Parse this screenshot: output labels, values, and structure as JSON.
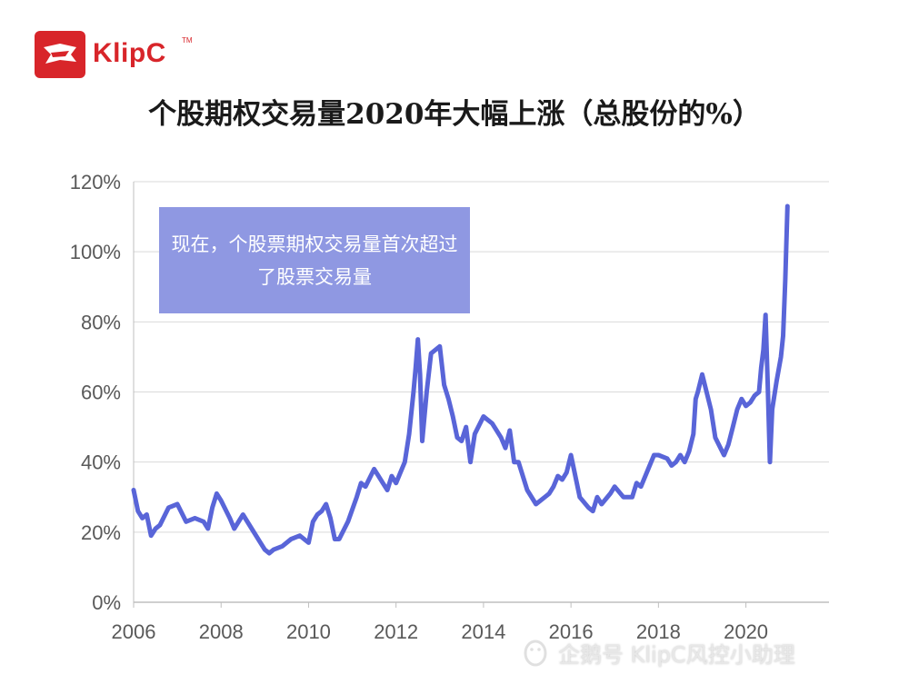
{
  "brand": {
    "name": "KlipC",
    "tm": "TM"
  },
  "title": "个股期权交易量2020年大幅上涨（总股份的%）",
  "annotation": "现在，个股票期权交易量首次超过了股票交易量",
  "watermark": "企鹅号 KlipC风控小助理",
  "colors": {
    "line": "#5965d8",
    "annotation_bg": "#8f98e2",
    "brand": "#d8252a",
    "grid": "#d9d9d9"
  },
  "chart_data": {
    "type": "line",
    "title": "个股期权交易量2020年大幅上涨（总股份的%）",
    "xlabel": "",
    "ylabel": "",
    "xlim": [
      2006,
      2021.9
    ],
    "ylim": [
      0,
      120
    ],
    "x_ticks": [
      2006,
      2008,
      2010,
      2012,
      2014,
      2016,
      2018,
      2020
    ],
    "x_tick_labels": [
      "2006",
      "2008",
      "2010",
      "2012",
      "2014",
      "2016",
      "2018",
      "2020"
    ],
    "y_ticks": [
      0,
      20,
      40,
      60,
      80,
      100,
      120
    ],
    "y_tick_labels": [
      "0%",
      "20%",
      "40%",
      "60%",
      "80%",
      "100%",
      "120%"
    ],
    "grid": "horizontal",
    "series": [
      {
        "x": [
          2006.0,
          2006.1,
          2006.2,
          2006.3,
          2006.4,
          2006.5,
          2006.6,
          2006.8,
          2007.0,
          2007.2,
          2007.4,
          2007.6,
          2007.7,
          2007.8,
          2007.9,
          2008.0,
          2008.2,
          2008.3,
          2008.5,
          2008.7,
          2008.9,
          2009.0,
          2009.1,
          2009.2,
          2009.4,
          2009.6,
          2009.8,
          2010.0,
          2010.1,
          2010.2,
          2010.3,
          2010.4,
          2010.5,
          2010.6,
          2010.7,
          2010.9,
          2011.1,
          2011.2,
          2011.3,
          2011.5,
          2011.6,
          2011.7,
          2011.8,
          2011.9,
          2012.0,
          2012.1,
          2012.2,
          2012.3,
          2012.4,
          2012.45,
          2012.5,
          2012.55,
          2012.6,
          2012.7,
          2012.8,
          2012.9,
          2013.0,
          2013.1,
          2013.2,
          2013.3,
          2013.4,
          2013.5,
          2013.6,
          2013.7,
          2013.8,
          2014.0,
          2014.2,
          2014.4,
          2014.5,
          2014.6,
          2014.7,
          2014.8,
          2015.0,
          2015.2,
          2015.4,
          2015.5,
          2015.6,
          2015.7,
          2015.8,
          2015.9,
          2016.0,
          2016.2,
          2016.4,
          2016.5,
          2016.6,
          2016.7,
          2016.9,
          2017.0,
          2017.2,
          2017.4,
          2017.5,
          2017.6,
          2017.8,
          2017.9,
          2018.0,
          2018.2,
          2018.3,
          2018.4,
          2018.5,
          2018.6,
          2018.7,
          2018.8,
          2018.85,
          2018.9,
          2019.0,
          2019.2,
          2019.3,
          2019.5,
          2019.6,
          2019.7,
          2019.8,
          2019.9,
          2020.0,
          2020.1,
          2020.2,
          2020.3,
          2020.35,
          2020.4,
          2020.45,
          2020.5,
          2020.55,
          2020.6,
          2020.7,
          2020.8,
          2020.85,
          2020.9,
          2020.95
        ],
        "values": [
          32,
          26,
          24,
          25,
          19,
          21,
          22,
          27,
          28,
          23,
          24,
          23,
          21,
          27,
          31,
          29,
          24,
          21,
          25,
          21,
          17,
          15,
          14,
          15,
          16,
          18,
          19,
          17,
          23,
          25,
          26,
          28,
          24,
          18,
          18,
          23,
          30,
          34,
          33,
          38,
          36,
          34,
          32,
          36,
          34,
          37,
          40,
          48,
          60,
          67,
          75,
          65,
          46,
          60,
          71,
          72,
          73,
          62,
          58,
          53,
          47,
          46,
          50,
          40,
          48,
          53,
          51,
          47,
          44,
          49,
          40,
          40,
          32,
          28,
          30,
          31,
          33,
          36,
          35,
          37,
          42,
          30,
          27,
          26,
          30,
          28,
          31,
          33,
          30,
          30,
          34,
          33,
          39,
          42,
          42,
          41,
          39,
          40,
          42,
          40,
          43,
          48,
          58,
          60,
          65,
          55,
          47,
          42,
          45,
          50,
          55,
          58,
          56,
          57,
          59,
          60,
          67,
          72,
          82,
          62,
          40,
          55,
          63,
          70,
          76,
          92,
          113
        ]
      }
    ]
  }
}
